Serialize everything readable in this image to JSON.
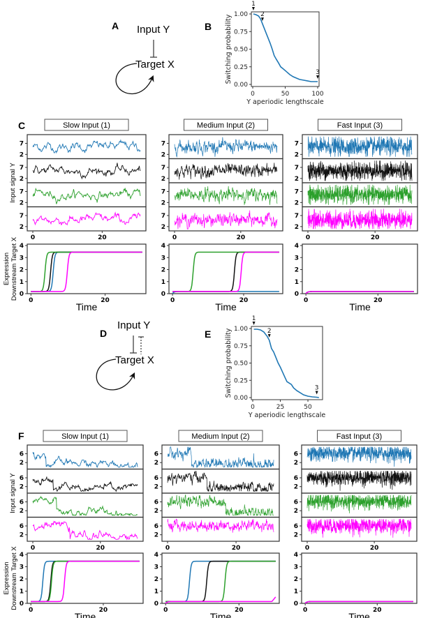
{
  "figure": {
    "panel_letters": {
      "A": "A",
      "B": "B",
      "C": "C",
      "D": "D",
      "E": "E",
      "F": "F"
    },
    "diagram_A": {
      "top_node": "Input Y",
      "bottom_node": "Target X",
      "edges": [
        "Input Y inhibits Target X",
        "Target X self-activation"
      ]
    },
    "diagram_D": {
      "top_node": "Input Y",
      "bottom_node": "Target X",
      "edges": [
        "Input Y inhibits Target X",
        "Target X inhibits Input Y (dashed)",
        "Target X self-activation"
      ]
    },
    "colors": {
      "blue": "#1f77b4",
      "black": "#111111",
      "green": "#2ca02c",
      "magenta": "#ff00ff",
      "axis": "#333333"
    },
    "row_C_titles": [
      "Slow Input (1)",
      "Medium Input (2)",
      "Fast  Input (3)"
    ],
    "row_F_titles": [
      "Slow Input (1)",
      "Medium Input (2)",
      "Fast  Input (3)"
    ],
    "input_ylabel": "Input signal Y",
    "expr_ylabel_line1": "Expression",
    "expr_ylabel_line2": "Downstream Target X",
    "time_label": "Time"
  },
  "chart_data": [
    {
      "id": "B",
      "type": "line",
      "title": "",
      "xlabel": "Y aperiodic lengthscale",
      "ylabel": "Switching probability",
      "xlim": [
        0,
        100
      ],
      "ylim": [
        0,
        1.0
      ],
      "xticks": [
        "0",
        "50",
        "100"
      ],
      "yticks": [
        "0.00",
        "0.25",
        "0.50",
        "0.75",
        "1.00"
      ],
      "x": [
        1,
        5,
        9,
        12,
        15,
        18,
        21,
        24,
        27,
        30,
        33,
        36,
        40,
        43,
        47,
        52,
        57,
        62,
        67,
        72,
        78,
        84,
        90,
        95,
        100
      ],
      "y": [
        1.0,
        0.99,
        0.97,
        0.93,
        0.86,
        0.79,
        0.72,
        0.65,
        0.58,
        0.5,
        0.41,
        0.36,
        0.3,
        0.25,
        0.22,
        0.18,
        0.14,
        0.11,
        0.09,
        0.07,
        0.06,
        0.05,
        0.04,
        0.04,
        0.04
      ],
      "markers": [
        {
          "label": "1",
          "x": 1
        },
        {
          "label": "2",
          "x": 15
        },
        {
          "label": "3",
          "x": 100
        }
      ]
    },
    {
      "id": "E",
      "type": "line",
      "title": "",
      "xlabel": "Y aperiodic lengthscale",
      "ylabel": "Switching probability",
      "xlim": [
        0,
        62
      ],
      "ylim": [
        0,
        1.0
      ],
      "xticks": [
        "0",
        "25",
        "50"
      ],
      "yticks": [
        "0.00",
        "0.25",
        "0.50",
        "0.75",
        "1.00"
      ],
      "x": [
        1,
        4,
        7,
        10,
        13,
        15,
        17,
        19,
        21,
        23,
        25,
        27,
        29,
        31,
        33,
        35,
        37,
        40,
        43,
        46,
        50,
        54,
        58,
        60
      ],
      "y": [
        0.99,
        0.99,
        0.98,
        0.95,
        0.89,
        0.83,
        0.71,
        0.66,
        0.58,
        0.5,
        0.44,
        0.37,
        0.3,
        0.23,
        0.21,
        0.19,
        0.14,
        0.1,
        0.07,
        0.04,
        0.02,
        0.01,
        0.005,
        0.0
      ],
      "markers": [
        {
          "label": "1",
          "x": 1
        },
        {
          "label": "2",
          "x": 15
        },
        {
          "label": "3",
          "x": 58
        }
      ]
    },
    {
      "id": "C-input",
      "type": "line",
      "ylabel": "Input signal Y",
      "panels": [
        "Slow Input (1)",
        "Medium Input (2)",
        "Fast  Input (3)"
      ],
      "xlim": [
        0,
        31
      ],
      "xticks": [
        "0",
        "20"
      ],
      "ylim": [
        1,
        10
      ],
      "yticks": [
        "2",
        "7"
      ],
      "series": [
        {
          "name": "trace-blue",
          "color": "blue",
          "mean": 5.5,
          "amp": 1.5
        },
        {
          "name": "trace-black",
          "color": "black",
          "mean": 5.5,
          "amp": 1.5
        },
        {
          "name": "trace-green",
          "color": "green",
          "mean": 5.5,
          "amp": 1.5
        },
        {
          "name": "trace-magenta",
          "color": "magenta",
          "mean": 5.0,
          "amp": 1.5
        }
      ],
      "noise_speed": [
        "slow",
        "medium",
        "fast"
      ]
    },
    {
      "id": "C-expression",
      "type": "line",
      "xlabel": "Time",
      "ylabel": "Expression Downstream Target X",
      "xlim": [
        -1,
        31
      ],
      "ylim": [
        0,
        4
      ],
      "xticks": [
        "0",
        "20"
      ],
      "yticks": [
        "0",
        "1",
        "2",
        "3",
        "4"
      ],
      "low": 0.18,
      "high": 3.45,
      "switch_times": [
        {
          "blue": 6.0,
          "black": 5.3,
          "green": 3.8,
          "magenta": 9.8
        },
        {
          "blue": null,
          "black": 17.4,
          "green": 5.8,
          "magenta": 19.3
        },
        {
          "blue": null,
          "black": null,
          "green": null,
          "magenta": null
        }
      ]
    },
    {
      "id": "F-input",
      "type": "line",
      "ylabel": "Input signal Y",
      "panels": [
        "Slow Input (1)",
        "Medium Input (2)",
        "Fast  Input (3)"
      ],
      "xlim": [
        0,
        31
      ],
      "xticks": [
        "0",
        "20"
      ],
      "ylim": [
        0,
        9
      ],
      "yticks": [
        "2",
        "6"
      ],
      "high_mean": 6.0,
      "low_mean": 1.5,
      "drop_times": [
        {
          "blue": 4.0,
          "black": 6.0,
          "green": 7.0,
          "magenta": 11.0
        },
        {
          "blue": 7.0,
          "black": 11.5,
          "green": 17.0,
          "magenta": null
        },
        {
          "blue": null,
          "black": null,
          "green": null,
          "magenta": null
        }
      ],
      "noise_speed": [
        "slow",
        "medium",
        "fast"
      ]
    },
    {
      "id": "F-expression",
      "type": "line",
      "xlabel": "Time",
      "ylabel": "Expression Downstream Target X",
      "xlim": [
        -1,
        31
      ],
      "ylim": [
        0,
        4
      ],
      "xticks": [
        "0",
        "20"
      ],
      "yticks": [
        "0",
        "1",
        "2",
        "3",
        "4"
      ],
      "low": 0.15,
      "high": 3.45,
      "switch_times": [
        {
          "blue": 3.3,
          "black": 5.5,
          "green": 5.7,
          "magenta": 9.3
        },
        {
          "blue": 6.5,
          "black": 11.2,
          "green": 16.2,
          "magenta": null
        },
        {
          "blue": null,
          "black": null,
          "green": null,
          "magenta": null
        }
      ],
      "magenta_end_uptick_medium": 0.45
    }
  ]
}
